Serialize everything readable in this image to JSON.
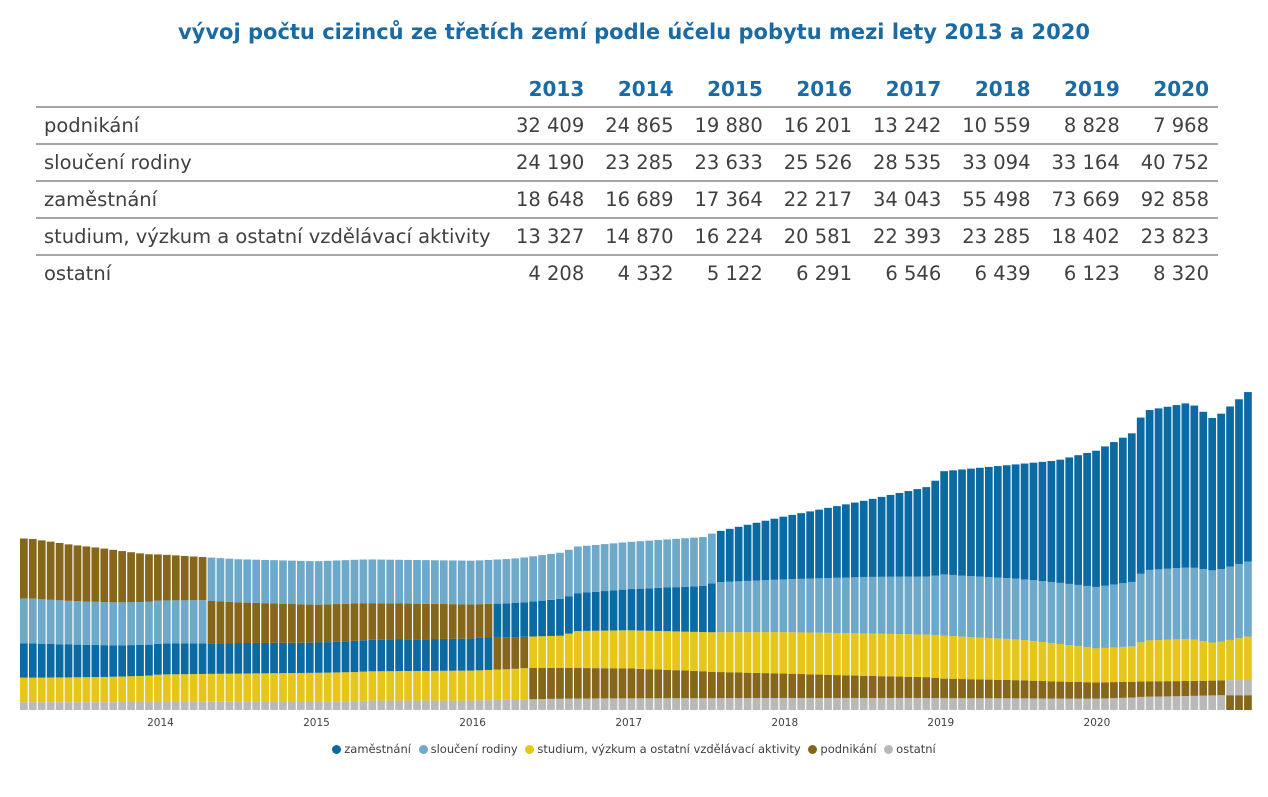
{
  "title": "vývoj počtu cizinců ze třetích zemí podle účelu pobytu mezi lety 2013 a 2020",
  "table": {
    "years": [
      "2013",
      "2014",
      "2015",
      "2016",
      "2017",
      "2018",
      "2019",
      "2020"
    ],
    "rows": [
      {
        "label": "podnikání",
        "values": [
          "32 409",
          "24 865",
          "19 880",
          "16 201",
          "13 242",
          "10 559",
          "8 828",
          "7 968"
        ]
      },
      {
        "label": "sloučení rodiny",
        "values": [
          "24 190",
          "23 285",
          "23 633",
          "25 526",
          "28 535",
          "33 094",
          "33 164",
          "40 752"
        ]
      },
      {
        "label": "zaměstnání",
        "values": [
          "18 648",
          "16 689",
          "17 364",
          "22 217",
          "34 043",
          "55 498",
          "73 669",
          "92 858"
        ]
      },
      {
        "label": "studium, výzkum a ostatní vzdělávací aktivity",
        "values": [
          "13 327",
          "14 870",
          "16 224",
          "20 581",
          "22 393",
          "23 285",
          "18 402",
          "23 823"
        ]
      },
      {
        "label": "ostatní",
        "values": [
          "4 208",
          "4 332",
          "5 122",
          "6 291",
          "6 546",
          "6 439",
          "6 123",
          "8 320"
        ]
      }
    ]
  },
  "chart_data": {
    "type": "area",
    "subtype": "stacked-ranked-monthly-bars",
    "x_tick_labels": [
      "2014",
      "2015",
      "2016",
      "2017",
      "2018",
      "2019",
      "2020"
    ],
    "x": [
      2013.167,
      2013.25,
      2013.333,
      2013.417,
      2013.5,
      2013.583,
      2013.667,
      2013.75,
      2013.833,
      2013.917,
      2014.0,
      2014.5,
      2015.0,
      2015.25,
      2015.33,
      2016.0,
      2016.25,
      2016.33,
      2016.5,
      2016.58,
      2016.67,
      2017.0,
      2017.5,
      2017.55,
      2018.0,
      2018.5,
      2018.95,
      2019.0,
      2019.5,
      2019.75,
      2020.0,
      2020.25,
      2020.3,
      2020.5,
      2020.6,
      2020.75,
      2020.8,
      2021.0
    ],
    "series": [
      {
        "name": "zaměstnání",
        "color": "#0b6aa2",
        "values": [
          18.6,
          18.3,
          18.0,
          17.8,
          17.6,
          17.4,
          17.1,
          16.9,
          16.8,
          16.7,
          16.7,
          16.5,
          16.3,
          16.9,
          17.0,
          17.3,
          18.4,
          18.6,
          19.5,
          20.0,
          20.4,
          22.2,
          25.0,
          27.0,
          34.0,
          41.0,
          49.0,
          55.5,
          62.0,
          66.0,
          73.7,
          81.0,
          86.0,
          88.0,
          89.0,
          82.0,
          84.0,
          92.9
        ]
      },
      {
        "name": "sloučení rodiny",
        "color": "#6fa9ca",
        "values": [
          24.2,
          24.0,
          23.8,
          23.6,
          23.4,
          23.3,
          23.2,
          23.2,
          23.2,
          23.2,
          23.3,
          23.3,
          23.5,
          23.6,
          23.6,
          23.6,
          24.0,
          24.2,
          24.8,
          25.0,
          25.2,
          25.5,
          26.5,
          27.0,
          28.5,
          30.5,
          31.5,
          33.1,
          32.8,
          33.0,
          33.2,
          35.0,
          38.0,
          38.5,
          38.7,
          39.0,
          39.2,
          40.8
        ]
      },
      {
        "name": "studium, výzkum a ostatní vzdělávací aktivity",
        "color": "#e6c619",
        "values": [
          13.3,
          13.3,
          13.4,
          13.4,
          13.5,
          13.6,
          13.7,
          13.8,
          14.0,
          14.2,
          14.9,
          15.2,
          15.5,
          15.7,
          15.8,
          16.2,
          16.5,
          16.8,
          17.2,
          17.5,
          20.0,
          20.6,
          21.2,
          21.4,
          22.4,
          22.9,
          23.0,
          23.3,
          22.0,
          20.5,
          18.4,
          19.2,
          22.0,
          22.5,
          22.8,
          20.5,
          21.0,
          23.8
        ]
      },
      {
        "name": "podnikání",
        "color": "#85661a",
        "values": [
          32.4,
          31.8,
          31.2,
          30.5,
          30.0,
          29.4,
          28.8,
          27.8,
          26.8,
          25.8,
          24.9,
          22.0,
          20.5,
          20.2,
          19.9,
          18.5,
          17.2,
          17.0,
          16.8,
          16.6,
          16.5,
          16.2,
          14.5,
          14.2,
          13.2,
          12.0,
          11.2,
          10.6,
          9.8,
          9.2,
          8.8,
          8.5,
          8.3,
          8.2,
          8.1,
          8.0,
          8.0,
          8.0
        ]
      },
      {
        "name": "ostatní",
        "color": "#b9b9b9",
        "values": [
          4.2,
          4.2,
          4.2,
          4.2,
          4.2,
          4.2,
          4.2,
          4.3,
          4.3,
          4.3,
          4.3,
          4.5,
          4.6,
          4.8,
          5.1,
          5.1,
          5.6,
          5.8,
          6.0,
          6.1,
          6.2,
          6.3,
          6.4,
          6.4,
          6.5,
          6.5,
          6.5,
          6.4,
          6.3,
          6.2,
          6.1,
          6.8,
          7.2,
          7.4,
          7.6,
          7.9,
          8.0,
          8.3
        ]
      }
    ],
    "unit": "thousands",
    "sort_stack_by_value": true,
    "legend_position": "bottom"
  },
  "legend": [
    {
      "name": "zaměstnání",
      "color": "#0b6aa2"
    },
    {
      "name": "sloučení rodiny",
      "color": "#6fa9ca"
    },
    {
      "name": "studium, výzkum a ostatní vzdělávací aktivity",
      "color": "#e6c619"
    },
    {
      "name": "podnikání",
      "color": "#85661a"
    },
    {
      "name": "ostatní",
      "color": "#b9b9b9"
    }
  ]
}
